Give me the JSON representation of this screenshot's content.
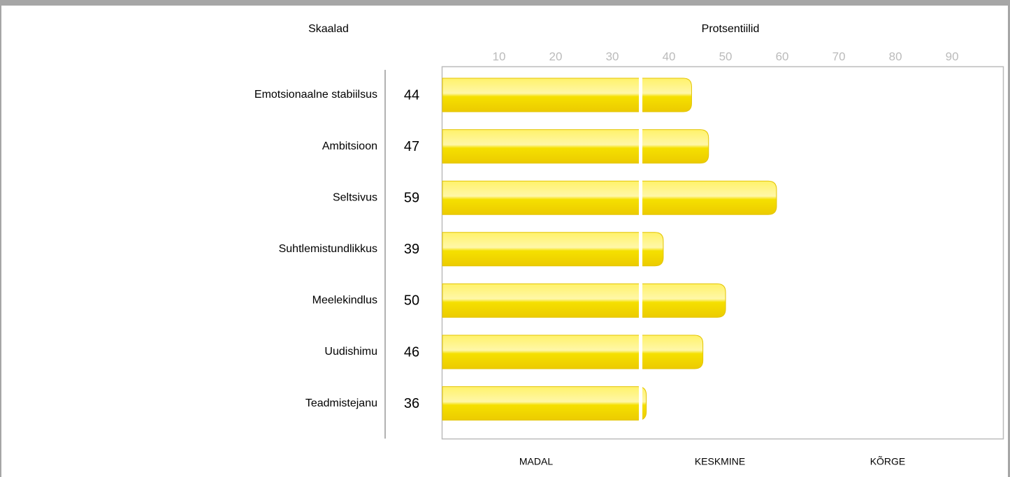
{
  "chart_data": {
    "type": "bar",
    "orientation": "horizontal",
    "y_heading": "Skaalad",
    "title": "Protsentiilid",
    "categories": [
      "Emotsionaalne stabiilsus",
      "Ambitsioon",
      "Seltsivus",
      "Suhtlemistundlikkus",
      "Meelekindlus",
      "Uudishimu",
      "Teadmistejanu"
    ],
    "values": [
      44,
      47,
      59,
      39,
      50,
      46,
      36
    ],
    "color": "#f5e000",
    "xlim": [
      0,
      99
    ],
    "xticks": [
      10,
      20,
      30,
      40,
      50,
      60,
      70,
      80,
      90
    ],
    "divider": 35,
    "bands": [
      "MADAL",
      "KESKMINE",
      "KÕRGE"
    ]
  }
}
